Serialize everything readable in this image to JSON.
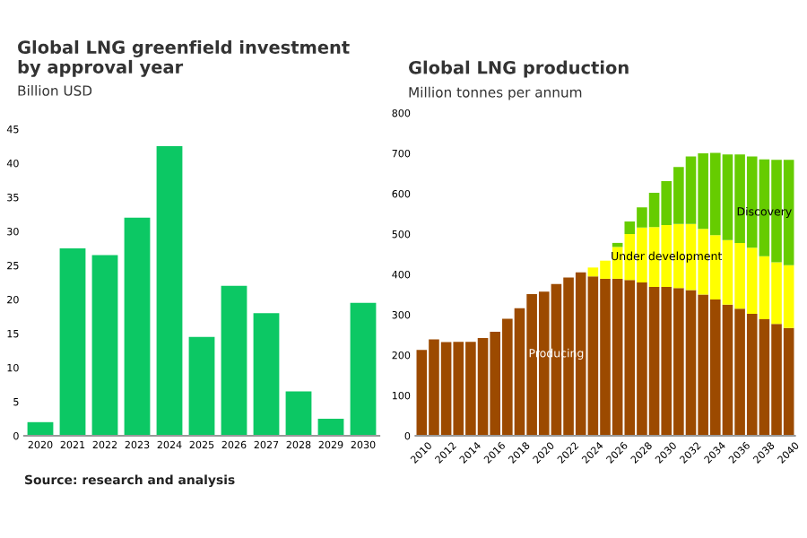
{
  "chart_data": [
    {
      "type": "bar",
      "title": "Global LNG greenfield investment\nby approval year",
      "subtitle": "Billion USD",
      "categories": [
        "2020",
        "2021",
        "2022",
        "2023",
        "2024",
        "2025",
        "2026",
        "2027",
        "2028",
        "2029",
        "2030"
      ],
      "values": [
        2,
        27.5,
        26.5,
        32,
        42.5,
        14.5,
        22,
        18,
        6.5,
        2.5,
        19.5
      ],
      "color": "#0cc864",
      "ylim": [
        0,
        45
      ],
      "yticks": [
        0,
        5,
        10,
        15,
        20,
        25,
        30,
        35,
        40,
        45
      ],
      "grid": false,
      "legend": false,
      "annotations": [
        "Source: research and analysis"
      ]
    },
    {
      "type": "bar",
      "title": "Global LNG production",
      "subtitle": "Million tonnes per annum",
      "stacked": true,
      "categories": [
        "2010",
        null,
        "2012",
        null,
        "2014",
        null,
        "2016",
        null,
        "2018",
        null,
        "2020",
        null,
        "2022",
        null,
        "2024",
        null,
        "2026",
        null,
        "2028",
        null,
        "2030",
        null,
        "2032",
        null,
        "2034",
        null,
        "2036",
        null,
        "2038",
        null,
        "2040"
      ],
      "series": [
        {
          "name": "Producing",
          "color": "#9c4a00",
          "values": [
            213,
            239,
            232,
            233,
            233,
            242,
            258,
            290,
            316,
            351,
            357,
            376,
            392,
            405,
            395,
            389,
            389,
            386,
            380,
            369,
            369,
            366,
            361,
            350,
            338,
            325,
            315,
            302,
            289,
            277,
            267
          ]
        },
        {
          "name": "Under development",
          "color": "#ffff00",
          "values": [
            0,
            0,
            0,
            0,
            0,
            0,
            0,
            0,
            0,
            0,
            0,
            0,
            0,
            0,
            22,
            45,
            79,
            114,
            136,
            148,
            153,
            159,
            164,
            163,
            159,
            160,
            163,
            164,
            156,
            153,
            156
          ]
        },
        {
          "name": "Discovery",
          "color": "#66cc00",
          "values": [
            0,
            0,
            0,
            0,
            0,
            0,
            0,
            0,
            0,
            0,
            0,
            0,
            0,
            0,
            0,
            0,
            10,
            31,
            50,
            85,
            109,
            141,
            167,
            187,
            204,
            212,
            219,
            226,
            240,
            254,
            261
          ]
        }
      ],
      "ylim": [
        0,
        800
      ],
      "yticks": [
        0,
        100,
        200,
        300,
        400,
        500,
        600,
        700,
        800
      ],
      "grid": false,
      "legend": false
    }
  ]
}
